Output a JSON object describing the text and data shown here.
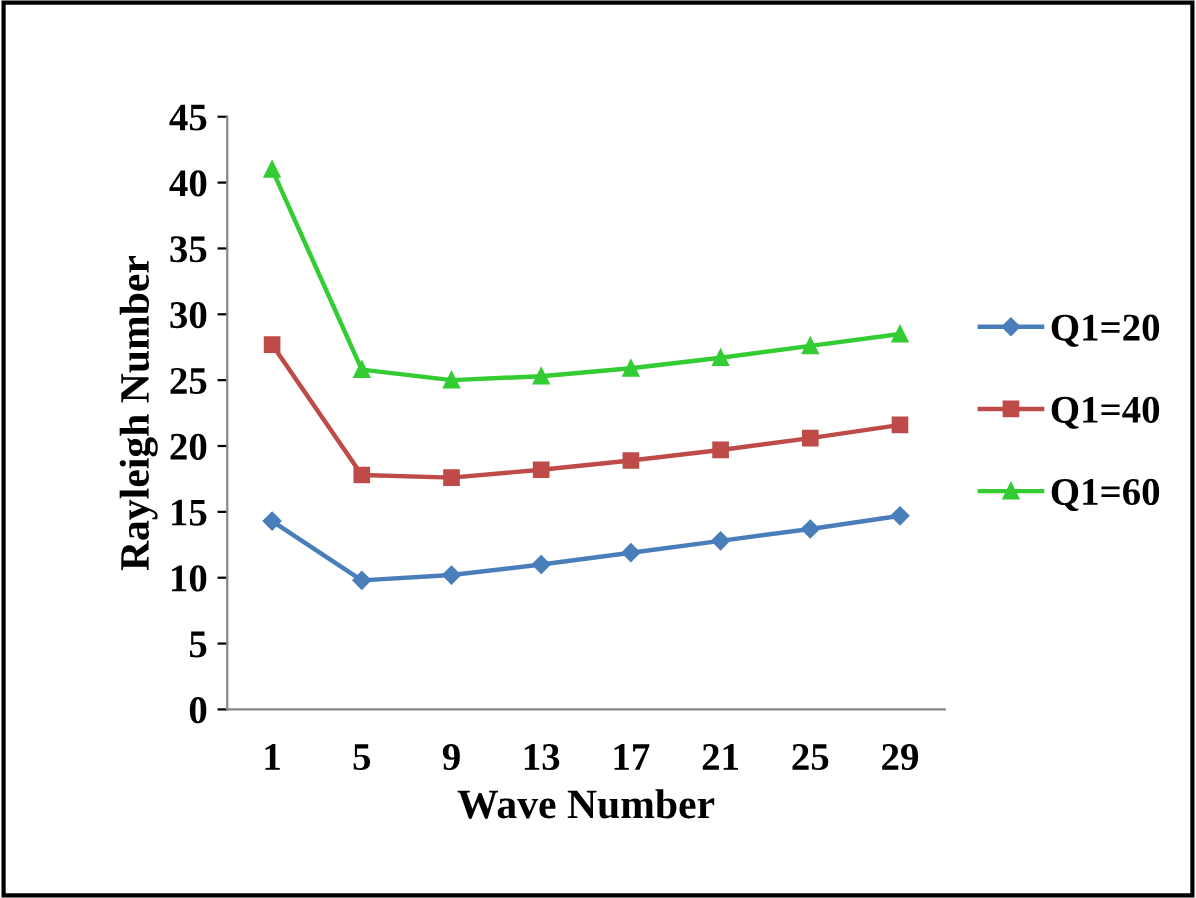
{
  "chart_data": {
    "type": "line",
    "xlabel": "Wave Number",
    "ylabel": "Rayleigh Number",
    "categories": [
      "1",
      "5",
      "9",
      "13",
      "17",
      "21",
      "25",
      "29"
    ],
    "series": [
      {
        "name": "Q1=20",
        "color": "#4a7ebb",
        "marker": "diamond",
        "values": [
          14.3,
          9.8,
          10.2,
          11.0,
          11.9,
          12.8,
          13.7,
          14.7
        ]
      },
      {
        "name": "Q1=40",
        "color": "#be4b48",
        "marker": "square",
        "values": [
          27.7,
          17.8,
          17.6,
          18.2,
          18.9,
          19.7,
          20.6,
          21.6
        ]
      },
      {
        "name": "Q1=60",
        "color": "#33cc33",
        "marker": "triangle",
        "values": [
          41.0,
          25.8,
          25.0,
          25.3,
          25.9,
          26.7,
          27.6,
          28.5
        ]
      }
    ],
    "ylim": [
      0,
      45
    ],
    "yticks": [
      0,
      5,
      10,
      15,
      20,
      25,
      30,
      35,
      40,
      45
    ],
    "grid": false,
    "legend": "right",
    "line_style": "solid"
  }
}
